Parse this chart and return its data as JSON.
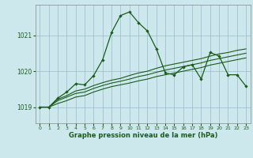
{
  "xlabel": "Graphe pression niveau de la mer (hPa)",
  "bg_color": "#cce8ec",
  "grid_color": "#99bbcc",
  "dark": "#1a5c1a",
  "x_ticks": [
    0,
    1,
    2,
    3,
    4,
    5,
    6,
    7,
    8,
    9,
    10,
    11,
    12,
    13,
    14,
    15,
    16,
    17,
    18,
    19,
    20,
    21,
    22,
    23
  ],
  "y_ticks": [
    1019,
    1020,
    1021
  ],
  "ylim": [
    1018.55,
    1021.85
  ],
  "xlim": [
    -0.5,
    23.5
  ],
  "s1": [
    1019.0,
    1019.0,
    1019.25,
    1019.42,
    1019.65,
    1019.62,
    1019.88,
    1020.32,
    1021.08,
    1021.55,
    1021.65,
    1021.35,
    1021.12,
    1020.62,
    1019.95,
    1019.9,
    1020.12,
    1020.18,
    1019.78,
    1020.52,
    1020.42,
    1019.9,
    1019.9,
    1019.58
  ],
  "s2": [
    1019.0,
    1019.0,
    1019.22,
    1019.32,
    1019.45,
    1019.5,
    1019.6,
    1019.68,
    1019.75,
    1019.8,
    1019.88,
    1019.95,
    1020.0,
    1020.08,
    1020.15,
    1020.2,
    1020.25,
    1020.3,
    1020.35,
    1020.42,
    1020.48,
    1020.52,
    1020.58,
    1020.62
  ],
  "s3": [
    1019.0,
    1019.0,
    1019.18,
    1019.28,
    1019.38,
    1019.42,
    1019.52,
    1019.6,
    1019.67,
    1019.72,
    1019.78,
    1019.85,
    1019.9,
    1019.97,
    1020.03,
    1020.08,
    1020.13,
    1020.18,
    1020.23,
    1020.3,
    1020.35,
    1020.4,
    1020.45,
    1020.5
  ],
  "s4": [
    1019.0,
    1019.0,
    1019.1,
    1019.18,
    1019.28,
    1019.32,
    1019.42,
    1019.5,
    1019.57,
    1019.62,
    1019.67,
    1019.73,
    1019.78,
    1019.85,
    1019.9,
    1019.95,
    1020.0,
    1020.05,
    1020.1,
    1020.17,
    1020.22,
    1020.27,
    1020.32,
    1020.37
  ]
}
